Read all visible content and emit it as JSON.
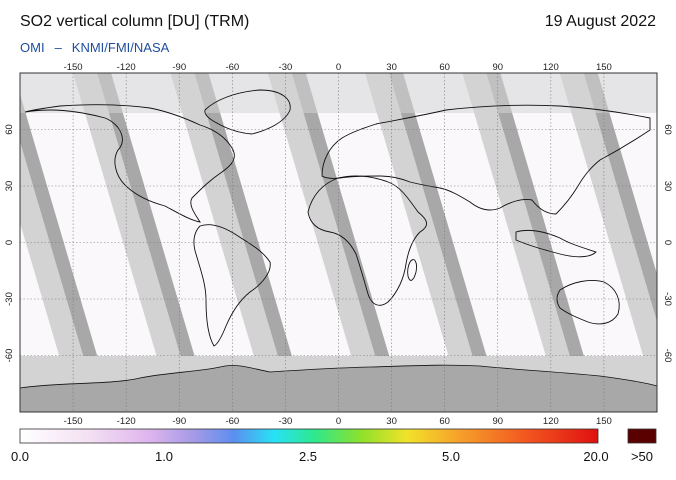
{
  "header": {
    "title": "SO2 vertical column [DU] (TRM)",
    "date": "19 August 2022",
    "instrument": "OMI",
    "separator": "–",
    "institutions": "KNMI/FMI/NASA"
  },
  "map": {
    "lon_ticks": [
      "-150",
      "-120",
      "-90",
      "-60",
      "-30",
      "0",
      "30",
      "60",
      "90",
      "120",
      "150"
    ],
    "lat_ticks": [
      "60",
      "30",
      "0",
      "-30",
      "-60"
    ],
    "colors": {
      "ocean": "#fbf8fc",
      "no_data": "#d3d3d3",
      "overlap": "#a8a8a8",
      "coast": "#111111",
      "grid": "#7a7a7a"
    }
  },
  "colorbar": {
    "labels": [
      "0.0",
      "1.0",
      "2.5",
      "5.0",
      "20.0"
    ],
    "overflow_label": ">50",
    "overflow_color": "#5a0000"
  }
}
